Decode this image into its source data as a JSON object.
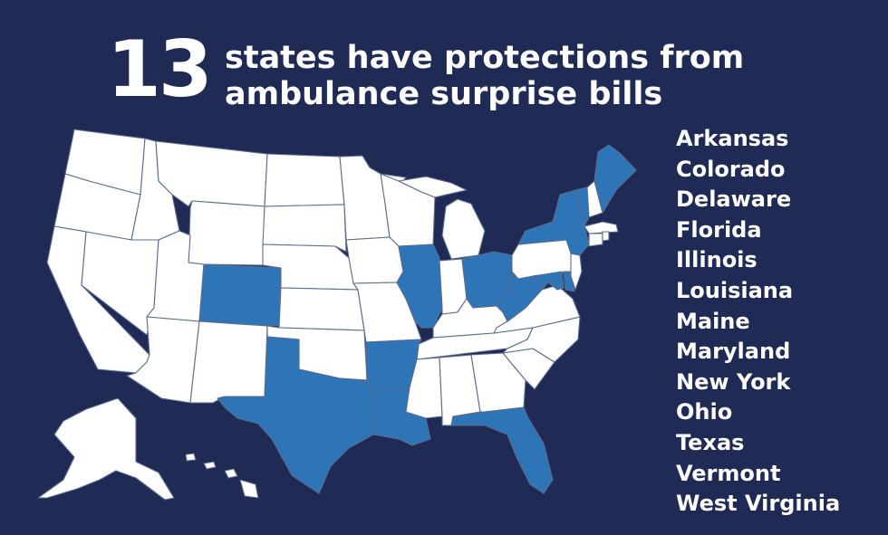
{
  "headline": {
    "number": "13",
    "text_line1": "states have protections from",
    "text_line2": "ambulance surprise bills"
  },
  "states_list": [
    "Arkansas",
    "Colorado",
    "Delaware",
    "Florida",
    "Illinois",
    "Louisiana",
    "Maine",
    "Maryland",
    "New York",
    "Ohio",
    "Texas",
    "Vermont",
    "West Virginia"
  ],
  "colors": {
    "background": "#1f2a55",
    "highlight": "#2e75b8",
    "state_fill": "#ffffff",
    "border": "#5a6a8f",
    "text": "#ffffff"
  }
}
